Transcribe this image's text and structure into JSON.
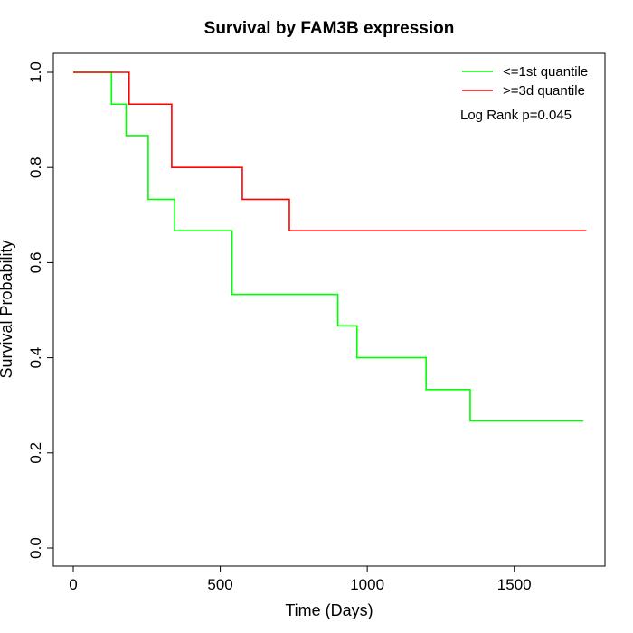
{
  "chart_data": {
    "type": "line",
    "step": true,
    "title": "Survival by FAM3B expression",
    "xlabel": "Time (Days)",
    "ylabel": "Survival Probability",
    "xlim": [
      0,
      1750
    ],
    "ylim": [
      0,
      1
    ],
    "x_ticks": [
      0,
      500,
      1000,
      1500
    ],
    "x_tick_labels": [
      "0",
      "500",
      "1000",
      "1500"
    ],
    "y_ticks": [
      0,
      0.2,
      0.4,
      0.6,
      0.8,
      1.0
    ],
    "y_tick_labels": [
      "0.0",
      "0.2",
      "0.4",
      "0.6",
      "0.8",
      "1.0"
    ],
    "grid": false,
    "legend_position": "top-right",
    "annotation": "Log Rank p=0.045",
    "series": [
      {
        "name": "<=1st quantile",
        "color": "#00ff00",
        "x": [
          0,
          130,
          180,
          255,
          345,
          540,
          900,
          965,
          1200,
          1350,
          1735
        ],
        "y": [
          1.0,
          0.933,
          0.867,
          0.733,
          0.667,
          0.533,
          0.467,
          0.4,
          0.333,
          0.267,
          0.267
        ]
      },
      {
        "name": ">=3d quantile",
        "color": "#ff0000",
        "x": [
          0,
          190,
          335,
          575,
          735,
          1745
        ],
        "y": [
          1.0,
          0.933,
          0.8,
          0.733,
          0.667,
          0.667
        ]
      }
    ]
  }
}
